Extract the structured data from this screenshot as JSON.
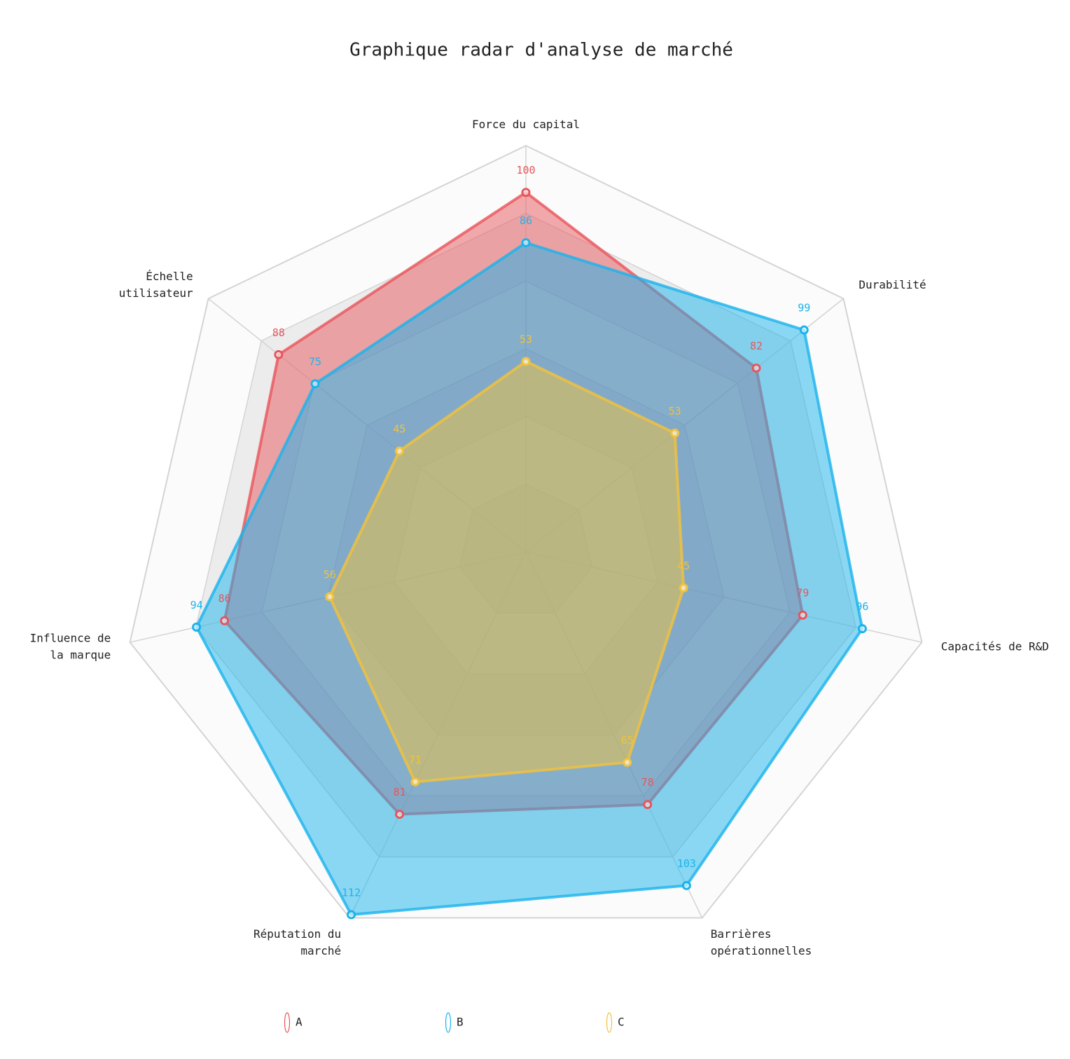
{
  "chart_data": {
    "type": "radar",
    "title": "Graphique radar d'analyse de marché",
    "indicators": [
      "Force du capital",
      "Durabilité",
      "Capacités de R&D",
      "Barrières\nopérationnelles",
      "Réputation du\nmarché",
      "Influence de\nla marque",
      "Échelle\nutilisateur"
    ],
    "rlim": [
      0,
      113
    ],
    "rings": 6,
    "series": [
      {
        "name": "A",
        "color": "#e8555b",
        "values": [
          100,
          82,
          79,
          78,
          81,
          86,
          88
        ]
      },
      {
        "name": "B",
        "color": "#1ab3ec",
        "values": [
          86,
          99,
          96,
          103,
          112,
          94,
          75
        ]
      },
      {
        "name": "C",
        "color": "#f2c23c",
        "values": [
          53,
          53,
          45,
          65,
          71,
          56,
          45
        ]
      }
    ]
  }
}
